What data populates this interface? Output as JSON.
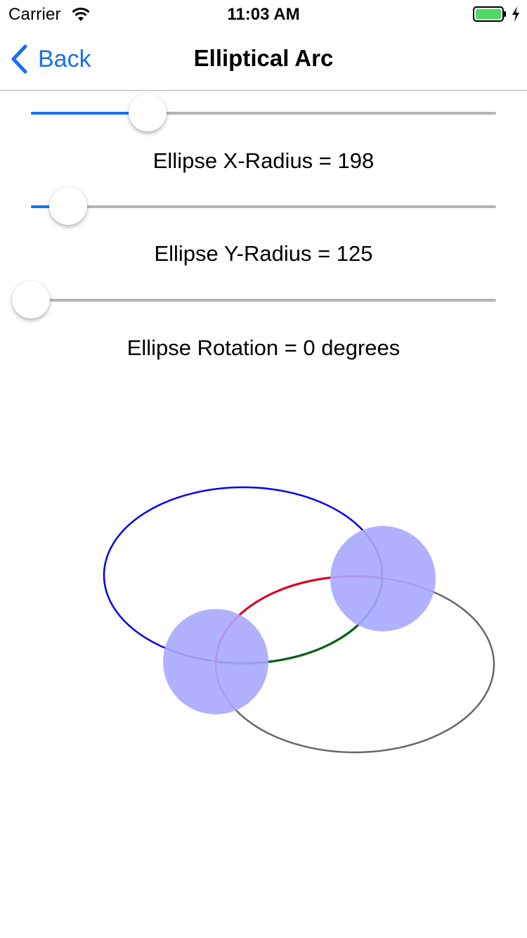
{
  "status_bar": {
    "carrier": "Carrier",
    "time": "11:03 AM",
    "battery_color": "#4cd964"
  },
  "nav": {
    "back_label": "Back",
    "title": "Elliptical Arc",
    "tint_color": "#1a6ff2"
  },
  "sliders": [
    {
      "name": "x-radius",
      "fraction": 0.25
    },
    {
      "name": "y-radius",
      "fraction": 0.08
    },
    {
      "name": "rotation",
      "fraction": 0.0
    }
  ],
  "labels": {
    "x_radius": "Ellipse X-Radius = 198",
    "y_radius": "Ellipse Y-Radius = 125",
    "rotation": "Ellipse Rotation = 0 degrees"
  },
  "drawing": {
    "ellipse_1_color": "#0000ee",
    "ellipse_2_color": "#666666",
    "arc_color_1": "#dd0022",
    "arc_color_2": "#006600",
    "handle_color": "#a8a8ff"
  }
}
